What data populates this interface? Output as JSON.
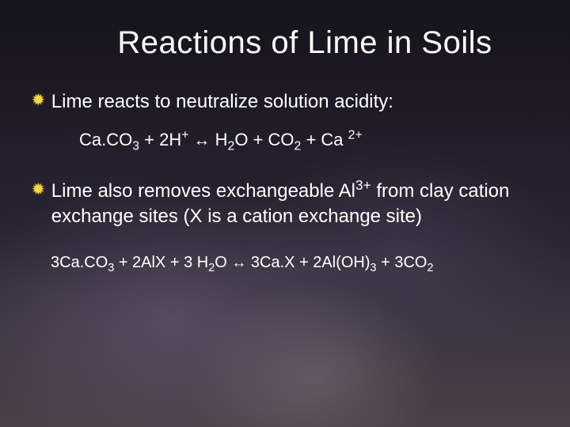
{
  "slide": {
    "title": "Reactions of Lime in Soils",
    "title_fontsize": 40,
    "title_color": "#ffffff",
    "body_fontsize": 24,
    "body_color": "#ffffff",
    "bullet_glyph": "✹",
    "bullet_color": "#f5d742",
    "background": {
      "type": "cloudy-gradient",
      "colors": [
        "#15131b",
        "#201c28",
        "#2a2432",
        "#3b3340",
        "#4a4048"
      ],
      "highlight_colors": [
        "#6e5f78",
        "#4b465a",
        "#82737d"
      ]
    },
    "bullets": [
      {
        "text": "Lime reacts to neutralize solution acidity:",
        "equation": {
          "plain": "Ca.CO3 + 2H+ ↔ H2O + CO2 + Ca 2+",
          "parts": [
            {
              "t": "Ca.CO"
            },
            {
              "t": "3",
              "sub": true
            },
            {
              "t": " + 2H"
            },
            {
              "t": "+",
              "sup": true
            },
            {
              "t": "  "
            },
            {
              "t": "↔",
              "arrow": true
            },
            {
              "t": " H"
            },
            {
              "t": "2",
              "sub": true
            },
            {
              "t": "O + CO"
            },
            {
              "t": "2",
              "sub": true
            },
            {
              "t": " + Ca "
            },
            {
              "t": "2+",
              "sup": true
            }
          ],
          "fontsize": 22
        }
      },
      {
        "text_parts": [
          {
            "t": "Lime also removes exchangeable Al"
          },
          {
            "t": "3+",
            "sup": true
          },
          {
            "t": " from clay cation exchange sites (X is a cation exchange site)"
          }
        ],
        "equation": {
          "plain": "3Ca.CO3 + 2AlX + 3 H2O ↔ 3Ca.X + 2Al(OH)3 + 3CO2",
          "parts": [
            {
              "t": "3Ca.CO"
            },
            {
              "t": "3",
              "sub": true
            },
            {
              "t": " + 2AlX + 3 H"
            },
            {
              "t": "2",
              "sub": true
            },
            {
              "t": "O "
            },
            {
              "t": "↔",
              "arrow": true
            },
            {
              "t": " 3Ca.X + 2Al(OH)"
            },
            {
              "t": "3",
              "sub": true
            },
            {
              "t": " + 3CO"
            },
            {
              "t": "2",
              "sub": true
            }
          ],
          "fontsize": 20
        }
      }
    ]
  }
}
